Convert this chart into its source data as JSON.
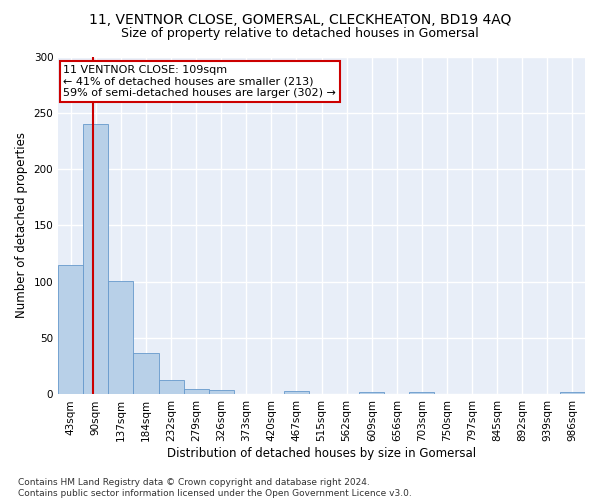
{
  "title": "11, VENTNOR CLOSE, GOMERSAL, CLECKHEATON, BD19 4AQ",
  "subtitle": "Size of property relative to detached houses in Gomersal",
  "xlabel": "Distribution of detached houses by size in Gomersal",
  "ylabel": "Number of detached properties",
  "bar_color": "#b8d0e8",
  "bar_edge_color": "#6699cc",
  "bin_labels": [
    "43sqm",
    "90sqm",
    "137sqm",
    "184sqm",
    "232sqm",
    "279sqm",
    "326sqm",
    "373sqm",
    "420sqm",
    "467sqm",
    "515sqm",
    "562sqm",
    "609sqm",
    "656sqm",
    "703sqm",
    "750sqm",
    "797sqm",
    "845sqm",
    "892sqm",
    "939sqm",
    "986sqm"
  ],
  "bar_values": [
    115,
    240,
    101,
    37,
    13,
    5,
    4,
    0,
    0,
    3,
    0,
    0,
    2,
    0,
    2,
    0,
    0,
    0,
    0,
    0,
    2
  ],
  "ylim": [
    0,
    300
  ],
  "yticks": [
    0,
    50,
    100,
    150,
    200,
    250,
    300
  ],
  "annotation_text": "11 VENTNOR CLOSE: 109sqm\n← 41% of detached houses are smaller (213)\n59% of semi-detached houses are larger (302) →",
  "annotation_box_color": "#ffffff",
  "annotation_box_edge_color": "#cc0000",
  "vline_color": "#cc0000",
  "footer_text": "Contains HM Land Registry data © Crown copyright and database right 2024.\nContains public sector information licensed under the Open Government Licence v3.0.",
  "background_color": "#e8eef8",
  "grid_color": "#ffffff",
  "fig_bg_color": "#ffffff",
  "title_fontsize": 10,
  "subtitle_fontsize": 9,
  "axis_label_fontsize": 8.5,
  "tick_fontsize": 7.5,
  "annotation_fontsize": 8,
  "footer_fontsize": 6.5
}
